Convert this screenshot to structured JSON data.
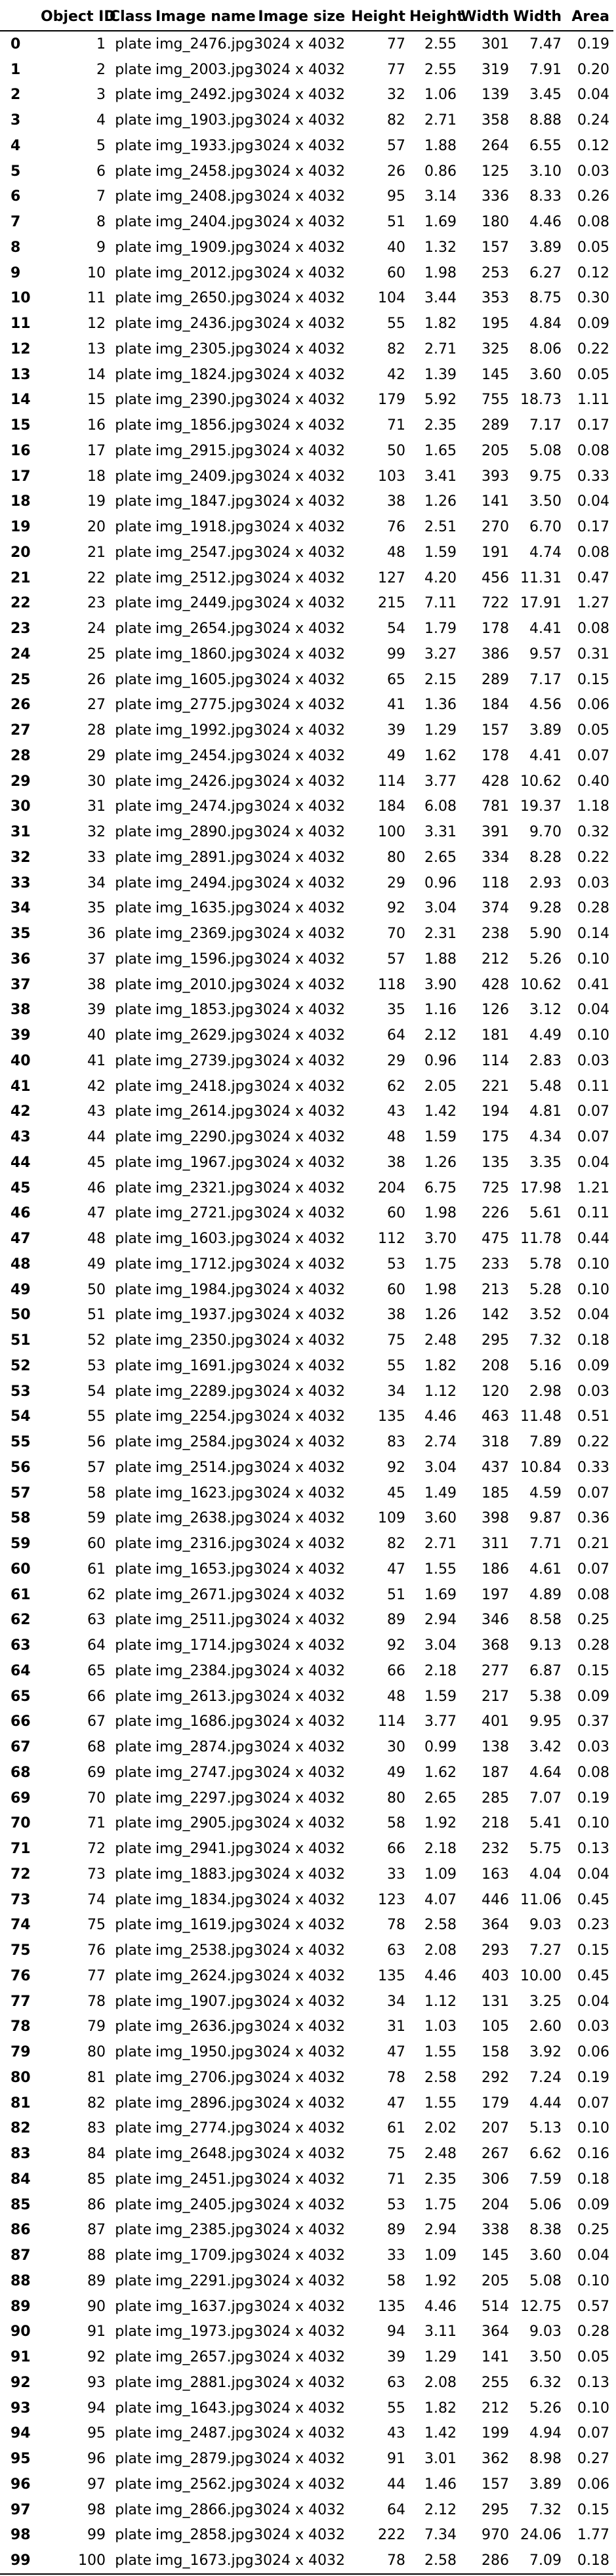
{
  "table": {
    "columns": [
      "",
      "Object ID",
      "Class",
      "Image name",
      "Image size",
      "Height",
      "Height",
      "Width",
      "Width",
      "Area"
    ],
    "rows": [
      [
        "0",
        "1",
        "plate",
        "img_2476.jpg",
        "3024 x 4032",
        "77",
        "2.55",
        "301",
        "7.47",
        "0.19"
      ],
      [
        "1",
        "2",
        "plate",
        "img_2003.jpg",
        "3024 x 4032",
        "77",
        "2.55",
        "319",
        "7.91",
        "0.20"
      ],
      [
        "2",
        "3",
        "plate",
        "img_2492.jpg",
        "3024 x 4032",
        "32",
        "1.06",
        "139",
        "3.45",
        "0.04"
      ],
      [
        "3",
        "4",
        "plate",
        "img_1903.jpg",
        "3024 x 4032",
        "82",
        "2.71",
        "358",
        "8.88",
        "0.24"
      ],
      [
        "4",
        "5",
        "plate",
        "img_1933.jpg",
        "3024 x 4032",
        "57",
        "1.88",
        "264",
        "6.55",
        "0.12"
      ],
      [
        "5",
        "6",
        "plate",
        "img_2458.jpg",
        "3024 x 4032",
        "26",
        "0.86",
        "125",
        "3.10",
        "0.03"
      ],
      [
        "6",
        "7",
        "plate",
        "img_2408.jpg",
        "3024 x 4032",
        "95",
        "3.14",
        "336",
        "8.33",
        "0.26"
      ],
      [
        "7",
        "8",
        "plate",
        "img_2404.jpg",
        "3024 x 4032",
        "51",
        "1.69",
        "180",
        "4.46",
        "0.08"
      ],
      [
        "8",
        "9",
        "plate",
        "img_1909.jpg",
        "3024 x 4032",
        "40",
        "1.32",
        "157",
        "3.89",
        "0.05"
      ],
      [
        "9",
        "10",
        "plate",
        "img_2012.jpg",
        "3024 x 4032",
        "60",
        "1.98",
        "253",
        "6.27",
        "0.12"
      ],
      [
        "10",
        "11",
        "plate",
        "img_2650.jpg",
        "3024 x 4032",
        "104",
        "3.44",
        "353",
        "8.75",
        "0.30"
      ],
      [
        "11",
        "12",
        "plate",
        "img_2436.jpg",
        "3024 x 4032",
        "55",
        "1.82",
        "195",
        "4.84",
        "0.09"
      ],
      [
        "12",
        "13",
        "plate",
        "img_2305.jpg",
        "3024 x 4032",
        "82",
        "2.71",
        "325",
        "8.06",
        "0.22"
      ],
      [
        "13",
        "14",
        "plate",
        "img_1824.jpg",
        "3024 x 4032",
        "42",
        "1.39",
        "145",
        "3.60",
        "0.05"
      ],
      [
        "14",
        "15",
        "plate",
        "img_2390.jpg",
        "3024 x 4032",
        "179",
        "5.92",
        "755",
        "18.73",
        "1.11"
      ],
      [
        "15",
        "16",
        "plate",
        "img_1856.jpg",
        "3024 x 4032",
        "71",
        "2.35",
        "289",
        "7.17",
        "0.17"
      ],
      [
        "16",
        "17",
        "plate",
        "img_2915.jpg",
        "3024 x 4032",
        "50",
        "1.65",
        "205",
        "5.08",
        "0.08"
      ],
      [
        "17",
        "18",
        "plate",
        "img_2409.jpg",
        "3024 x 4032",
        "103",
        "3.41",
        "393",
        "9.75",
        "0.33"
      ],
      [
        "18",
        "19",
        "plate",
        "img_1847.jpg",
        "3024 x 4032",
        "38",
        "1.26",
        "141",
        "3.50",
        "0.04"
      ],
      [
        "19",
        "20",
        "plate",
        "img_1918.jpg",
        "3024 x 4032",
        "76",
        "2.51",
        "270",
        "6.70",
        "0.17"
      ],
      [
        "20",
        "21",
        "plate",
        "img_2547.jpg",
        "3024 x 4032",
        "48",
        "1.59",
        "191",
        "4.74",
        "0.08"
      ],
      [
        "21",
        "22",
        "plate",
        "img_2512.jpg",
        "3024 x 4032",
        "127",
        "4.20",
        "456",
        "11.31",
        "0.47"
      ],
      [
        "22",
        "23",
        "plate",
        "img_2449.jpg",
        "3024 x 4032",
        "215",
        "7.11",
        "722",
        "17.91",
        "1.27"
      ],
      [
        "23",
        "24",
        "plate",
        "img_2654.jpg",
        "3024 x 4032",
        "54",
        "1.79",
        "178",
        "4.41",
        "0.08"
      ],
      [
        "24",
        "25",
        "plate",
        "img_1860.jpg",
        "3024 x 4032",
        "99",
        "3.27",
        "386",
        "9.57",
        "0.31"
      ],
      [
        "25",
        "26",
        "plate",
        "img_1605.jpg",
        "3024 x 4032",
        "65",
        "2.15",
        "289",
        "7.17",
        "0.15"
      ],
      [
        "26",
        "27",
        "plate",
        "img_2775.jpg",
        "3024 x 4032",
        "41",
        "1.36",
        "184",
        "4.56",
        "0.06"
      ],
      [
        "27",
        "28",
        "plate",
        "img_1992.jpg",
        "3024 x 4032",
        "39",
        "1.29",
        "157",
        "3.89",
        "0.05"
      ],
      [
        "28",
        "29",
        "plate",
        "img_2454.jpg",
        "3024 x 4032",
        "49",
        "1.62",
        "178",
        "4.41",
        "0.07"
      ],
      [
        "29",
        "30",
        "plate",
        "img_2426.jpg",
        "3024 x 4032",
        "114",
        "3.77",
        "428",
        "10.62",
        "0.40"
      ],
      [
        "30",
        "31",
        "plate",
        "img_2474.jpg",
        "3024 x 4032",
        "184",
        "6.08",
        "781",
        "19.37",
        "1.18"
      ],
      [
        "31",
        "32",
        "plate",
        "img_2890.jpg",
        "3024 x 4032",
        "100",
        "3.31",
        "391",
        "9.70",
        "0.32"
      ],
      [
        "32",
        "33",
        "plate",
        "img_2891.jpg",
        "3024 x 4032",
        "80",
        "2.65",
        "334",
        "8.28",
        "0.22"
      ],
      [
        "33",
        "34",
        "plate",
        "img_2494.jpg",
        "3024 x 4032",
        "29",
        "0.96",
        "118",
        "2.93",
        "0.03"
      ],
      [
        "34",
        "35",
        "plate",
        "img_1635.jpg",
        "3024 x 4032",
        "92",
        "3.04",
        "374",
        "9.28",
        "0.28"
      ],
      [
        "35",
        "36",
        "plate",
        "img_2369.jpg",
        "3024 x 4032",
        "70",
        "2.31",
        "238",
        "5.90",
        "0.14"
      ],
      [
        "36",
        "37",
        "plate",
        "img_1596.jpg",
        "3024 x 4032",
        "57",
        "1.88",
        "212",
        "5.26",
        "0.10"
      ],
      [
        "37",
        "38",
        "plate",
        "img_2010.jpg",
        "3024 x 4032",
        "118",
        "3.90",
        "428",
        "10.62",
        "0.41"
      ],
      [
        "38",
        "39",
        "plate",
        "img_1853.jpg",
        "3024 x 4032",
        "35",
        "1.16",
        "126",
        "3.12",
        "0.04"
      ],
      [
        "39",
        "40",
        "plate",
        "img_2629.jpg",
        "3024 x 4032",
        "64",
        "2.12",
        "181",
        "4.49",
        "0.10"
      ],
      [
        "40",
        "41",
        "plate",
        "img_2739.jpg",
        "3024 x 4032",
        "29",
        "0.96",
        "114",
        "2.83",
        "0.03"
      ],
      [
        "41",
        "42",
        "plate",
        "img_2418.jpg",
        "3024 x 4032",
        "62",
        "2.05",
        "221",
        "5.48",
        "0.11"
      ],
      [
        "42",
        "43",
        "plate",
        "img_2614.jpg",
        "3024 x 4032",
        "43",
        "1.42",
        "194",
        "4.81",
        "0.07"
      ],
      [
        "43",
        "44",
        "plate",
        "img_2290.jpg",
        "3024 x 4032",
        "48",
        "1.59",
        "175",
        "4.34",
        "0.07"
      ],
      [
        "44",
        "45",
        "plate",
        "img_1967.jpg",
        "3024 x 4032",
        "38",
        "1.26",
        "135",
        "3.35",
        "0.04"
      ],
      [
        "45",
        "46",
        "plate",
        "img_2321.jpg",
        "3024 x 4032",
        "204",
        "6.75",
        "725",
        "17.98",
        "1.21"
      ],
      [
        "46",
        "47",
        "plate",
        "img_2721.jpg",
        "3024 x 4032",
        "60",
        "1.98",
        "226",
        "5.61",
        "0.11"
      ],
      [
        "47",
        "48",
        "plate",
        "img_1603.jpg",
        "3024 x 4032",
        "112",
        "3.70",
        "475",
        "11.78",
        "0.44"
      ],
      [
        "48",
        "49",
        "plate",
        "img_1712.jpg",
        "3024 x 4032",
        "53",
        "1.75",
        "233",
        "5.78",
        "0.10"
      ],
      [
        "49",
        "50",
        "plate",
        "img_1984.jpg",
        "3024 x 4032",
        "60",
        "1.98",
        "213",
        "5.28",
        "0.10"
      ],
      [
        "50",
        "51",
        "plate",
        "img_1937.jpg",
        "3024 x 4032",
        "38",
        "1.26",
        "142",
        "3.52",
        "0.04"
      ],
      [
        "51",
        "52",
        "plate",
        "img_2350.jpg",
        "3024 x 4032",
        "75",
        "2.48",
        "295",
        "7.32",
        "0.18"
      ],
      [
        "52",
        "53",
        "plate",
        "img_1691.jpg",
        "3024 x 4032",
        "55",
        "1.82",
        "208",
        "5.16",
        "0.09"
      ],
      [
        "53",
        "54",
        "plate",
        "img_2289.jpg",
        "3024 x 4032",
        "34",
        "1.12",
        "120",
        "2.98",
        "0.03"
      ],
      [
        "54",
        "55",
        "plate",
        "img_2254.jpg",
        "3024 x 4032",
        "135",
        "4.46",
        "463",
        "11.48",
        "0.51"
      ],
      [
        "55",
        "56",
        "plate",
        "img_2584.jpg",
        "3024 x 4032",
        "83",
        "2.74",
        "318",
        "7.89",
        "0.22"
      ],
      [
        "56",
        "57",
        "plate",
        "img_2514.jpg",
        "3024 x 4032",
        "92",
        "3.04",
        "437",
        "10.84",
        "0.33"
      ],
      [
        "57",
        "58",
        "plate",
        "img_1623.jpg",
        "3024 x 4032",
        "45",
        "1.49",
        "185",
        "4.59",
        "0.07"
      ],
      [
        "58",
        "59",
        "plate",
        "img_2638.jpg",
        "3024 x 4032",
        "109",
        "3.60",
        "398",
        "9.87",
        "0.36"
      ],
      [
        "59",
        "60",
        "plate",
        "img_2316.jpg",
        "3024 x 4032",
        "82",
        "2.71",
        "311",
        "7.71",
        "0.21"
      ],
      [
        "60",
        "61",
        "plate",
        "img_1653.jpg",
        "3024 x 4032",
        "47",
        "1.55",
        "186",
        "4.61",
        "0.07"
      ],
      [
        "61",
        "62",
        "plate",
        "img_2671.jpg",
        "3024 x 4032",
        "51",
        "1.69",
        "197",
        "4.89",
        "0.08"
      ],
      [
        "62",
        "63",
        "plate",
        "img_2511.jpg",
        "3024 x 4032",
        "89",
        "2.94",
        "346",
        "8.58",
        "0.25"
      ],
      [
        "63",
        "64",
        "plate",
        "img_1714.jpg",
        "3024 x 4032",
        "92",
        "3.04",
        "368",
        "9.13",
        "0.28"
      ],
      [
        "64",
        "65",
        "plate",
        "img_2384.jpg",
        "3024 x 4032",
        "66",
        "2.18",
        "277",
        "6.87",
        "0.15"
      ],
      [
        "65",
        "66",
        "plate",
        "img_2613.jpg",
        "3024 x 4032",
        "48",
        "1.59",
        "217",
        "5.38",
        "0.09"
      ],
      [
        "66",
        "67",
        "plate",
        "img_1686.jpg",
        "3024 x 4032",
        "114",
        "3.77",
        "401",
        "9.95",
        "0.37"
      ],
      [
        "67",
        "68",
        "plate",
        "img_2874.jpg",
        "3024 x 4032",
        "30",
        "0.99",
        "138",
        "3.42",
        "0.03"
      ],
      [
        "68",
        "69",
        "plate",
        "img_2747.jpg",
        "3024 x 4032",
        "49",
        "1.62",
        "187",
        "4.64",
        "0.08"
      ],
      [
        "69",
        "70",
        "plate",
        "img_2297.jpg",
        "3024 x 4032",
        "80",
        "2.65",
        "285",
        "7.07",
        "0.19"
      ],
      [
        "70",
        "71",
        "plate",
        "img_2905.jpg",
        "3024 x 4032",
        "58",
        "1.92",
        "218",
        "5.41",
        "0.10"
      ],
      [
        "71",
        "72",
        "plate",
        "img_2941.jpg",
        "3024 x 4032",
        "66",
        "2.18",
        "232",
        "5.75",
        "0.13"
      ],
      [
        "72",
        "73",
        "plate",
        "img_1883.jpg",
        "3024 x 4032",
        "33",
        "1.09",
        "163",
        "4.04",
        "0.04"
      ],
      [
        "73",
        "74",
        "plate",
        "img_1834.jpg",
        "3024 x 4032",
        "123",
        "4.07",
        "446",
        "11.06",
        "0.45"
      ],
      [
        "74",
        "75",
        "plate",
        "img_1619.jpg",
        "3024 x 4032",
        "78",
        "2.58",
        "364",
        "9.03",
        "0.23"
      ],
      [
        "75",
        "76",
        "plate",
        "img_2538.jpg",
        "3024 x 4032",
        "63",
        "2.08",
        "293",
        "7.27",
        "0.15"
      ],
      [
        "76",
        "77",
        "plate",
        "img_2624.jpg",
        "3024 x 4032",
        "135",
        "4.46",
        "403",
        "10.00",
        "0.45"
      ],
      [
        "77",
        "78",
        "plate",
        "img_1907.jpg",
        "3024 x 4032",
        "34",
        "1.12",
        "131",
        "3.25",
        "0.04"
      ],
      [
        "78",
        "79",
        "plate",
        "img_2636.jpg",
        "3024 x 4032",
        "31",
        "1.03",
        "105",
        "2.60",
        "0.03"
      ],
      [
        "79",
        "80",
        "plate",
        "img_1950.jpg",
        "3024 x 4032",
        "47",
        "1.55",
        "158",
        "3.92",
        "0.06"
      ],
      [
        "80",
        "81",
        "plate",
        "img_2706.jpg",
        "3024 x 4032",
        "78",
        "2.58",
        "292",
        "7.24",
        "0.19"
      ],
      [
        "81",
        "82",
        "plate",
        "img_2896.jpg",
        "3024 x 4032",
        "47",
        "1.55",
        "179",
        "4.44",
        "0.07"
      ],
      [
        "82",
        "83",
        "plate",
        "img_2774.jpg",
        "3024 x 4032",
        "61",
        "2.02",
        "207",
        "5.13",
        "0.10"
      ],
      [
        "83",
        "84",
        "plate",
        "img_2648.jpg",
        "3024 x 4032",
        "75",
        "2.48",
        "267",
        "6.62",
        "0.16"
      ],
      [
        "84",
        "85",
        "plate",
        "img_2451.jpg",
        "3024 x 4032",
        "71",
        "2.35",
        "306",
        "7.59",
        "0.18"
      ],
      [
        "85",
        "86",
        "plate",
        "img_2405.jpg",
        "3024 x 4032",
        "53",
        "1.75",
        "204",
        "5.06",
        "0.09"
      ],
      [
        "86",
        "87",
        "plate",
        "img_2385.jpg",
        "3024 x 4032",
        "89",
        "2.94",
        "338",
        "8.38",
        "0.25"
      ],
      [
        "87",
        "88",
        "plate",
        "img_1709.jpg",
        "3024 x 4032",
        "33",
        "1.09",
        "145",
        "3.60",
        "0.04"
      ],
      [
        "88",
        "89",
        "plate",
        "img_2291.jpg",
        "3024 x 4032",
        "58",
        "1.92",
        "205",
        "5.08",
        "0.10"
      ],
      [
        "89",
        "90",
        "plate",
        "img_1637.jpg",
        "3024 x 4032",
        "135",
        "4.46",
        "514",
        "12.75",
        "0.57"
      ],
      [
        "90",
        "91",
        "plate",
        "img_1973.jpg",
        "3024 x 4032",
        "94",
        "3.11",
        "364",
        "9.03",
        "0.28"
      ],
      [
        "91",
        "92",
        "plate",
        "img_2657.jpg",
        "3024 x 4032",
        "39",
        "1.29",
        "141",
        "3.50",
        "0.05"
      ],
      [
        "92",
        "93",
        "plate",
        "img_2881.jpg",
        "3024 x 4032",
        "63",
        "2.08",
        "255",
        "6.32",
        "0.13"
      ],
      [
        "93",
        "94",
        "plate",
        "img_1643.jpg",
        "3024 x 4032",
        "55",
        "1.82",
        "212",
        "5.26",
        "0.10"
      ],
      [
        "94",
        "95",
        "plate",
        "img_2487.jpg",
        "3024 x 4032",
        "43",
        "1.42",
        "199",
        "4.94",
        "0.07"
      ],
      [
        "95",
        "96",
        "plate",
        "img_2879.jpg",
        "3024 x 4032",
        "91",
        "3.01",
        "362",
        "8.98",
        "0.27"
      ],
      [
        "96",
        "97",
        "plate",
        "img_2562.jpg",
        "3024 x 4032",
        "44",
        "1.46",
        "157",
        "3.89",
        "0.06"
      ],
      [
        "97",
        "98",
        "plate",
        "img_2866.jpg",
        "3024 x 4032",
        "64",
        "2.12",
        "295",
        "7.32",
        "0.15"
      ],
      [
        "98",
        "99",
        "plate",
        "img_2858.jpg",
        "3024 x 4032",
        "222",
        "7.34",
        "970",
        "24.06",
        "1.77"
      ],
      [
        "99",
        "100",
        "plate",
        "img_1673.jpg",
        "3024 x 4032",
        "78",
        "2.58",
        "286",
        "7.09",
        "0.18"
      ]
    ]
  }
}
